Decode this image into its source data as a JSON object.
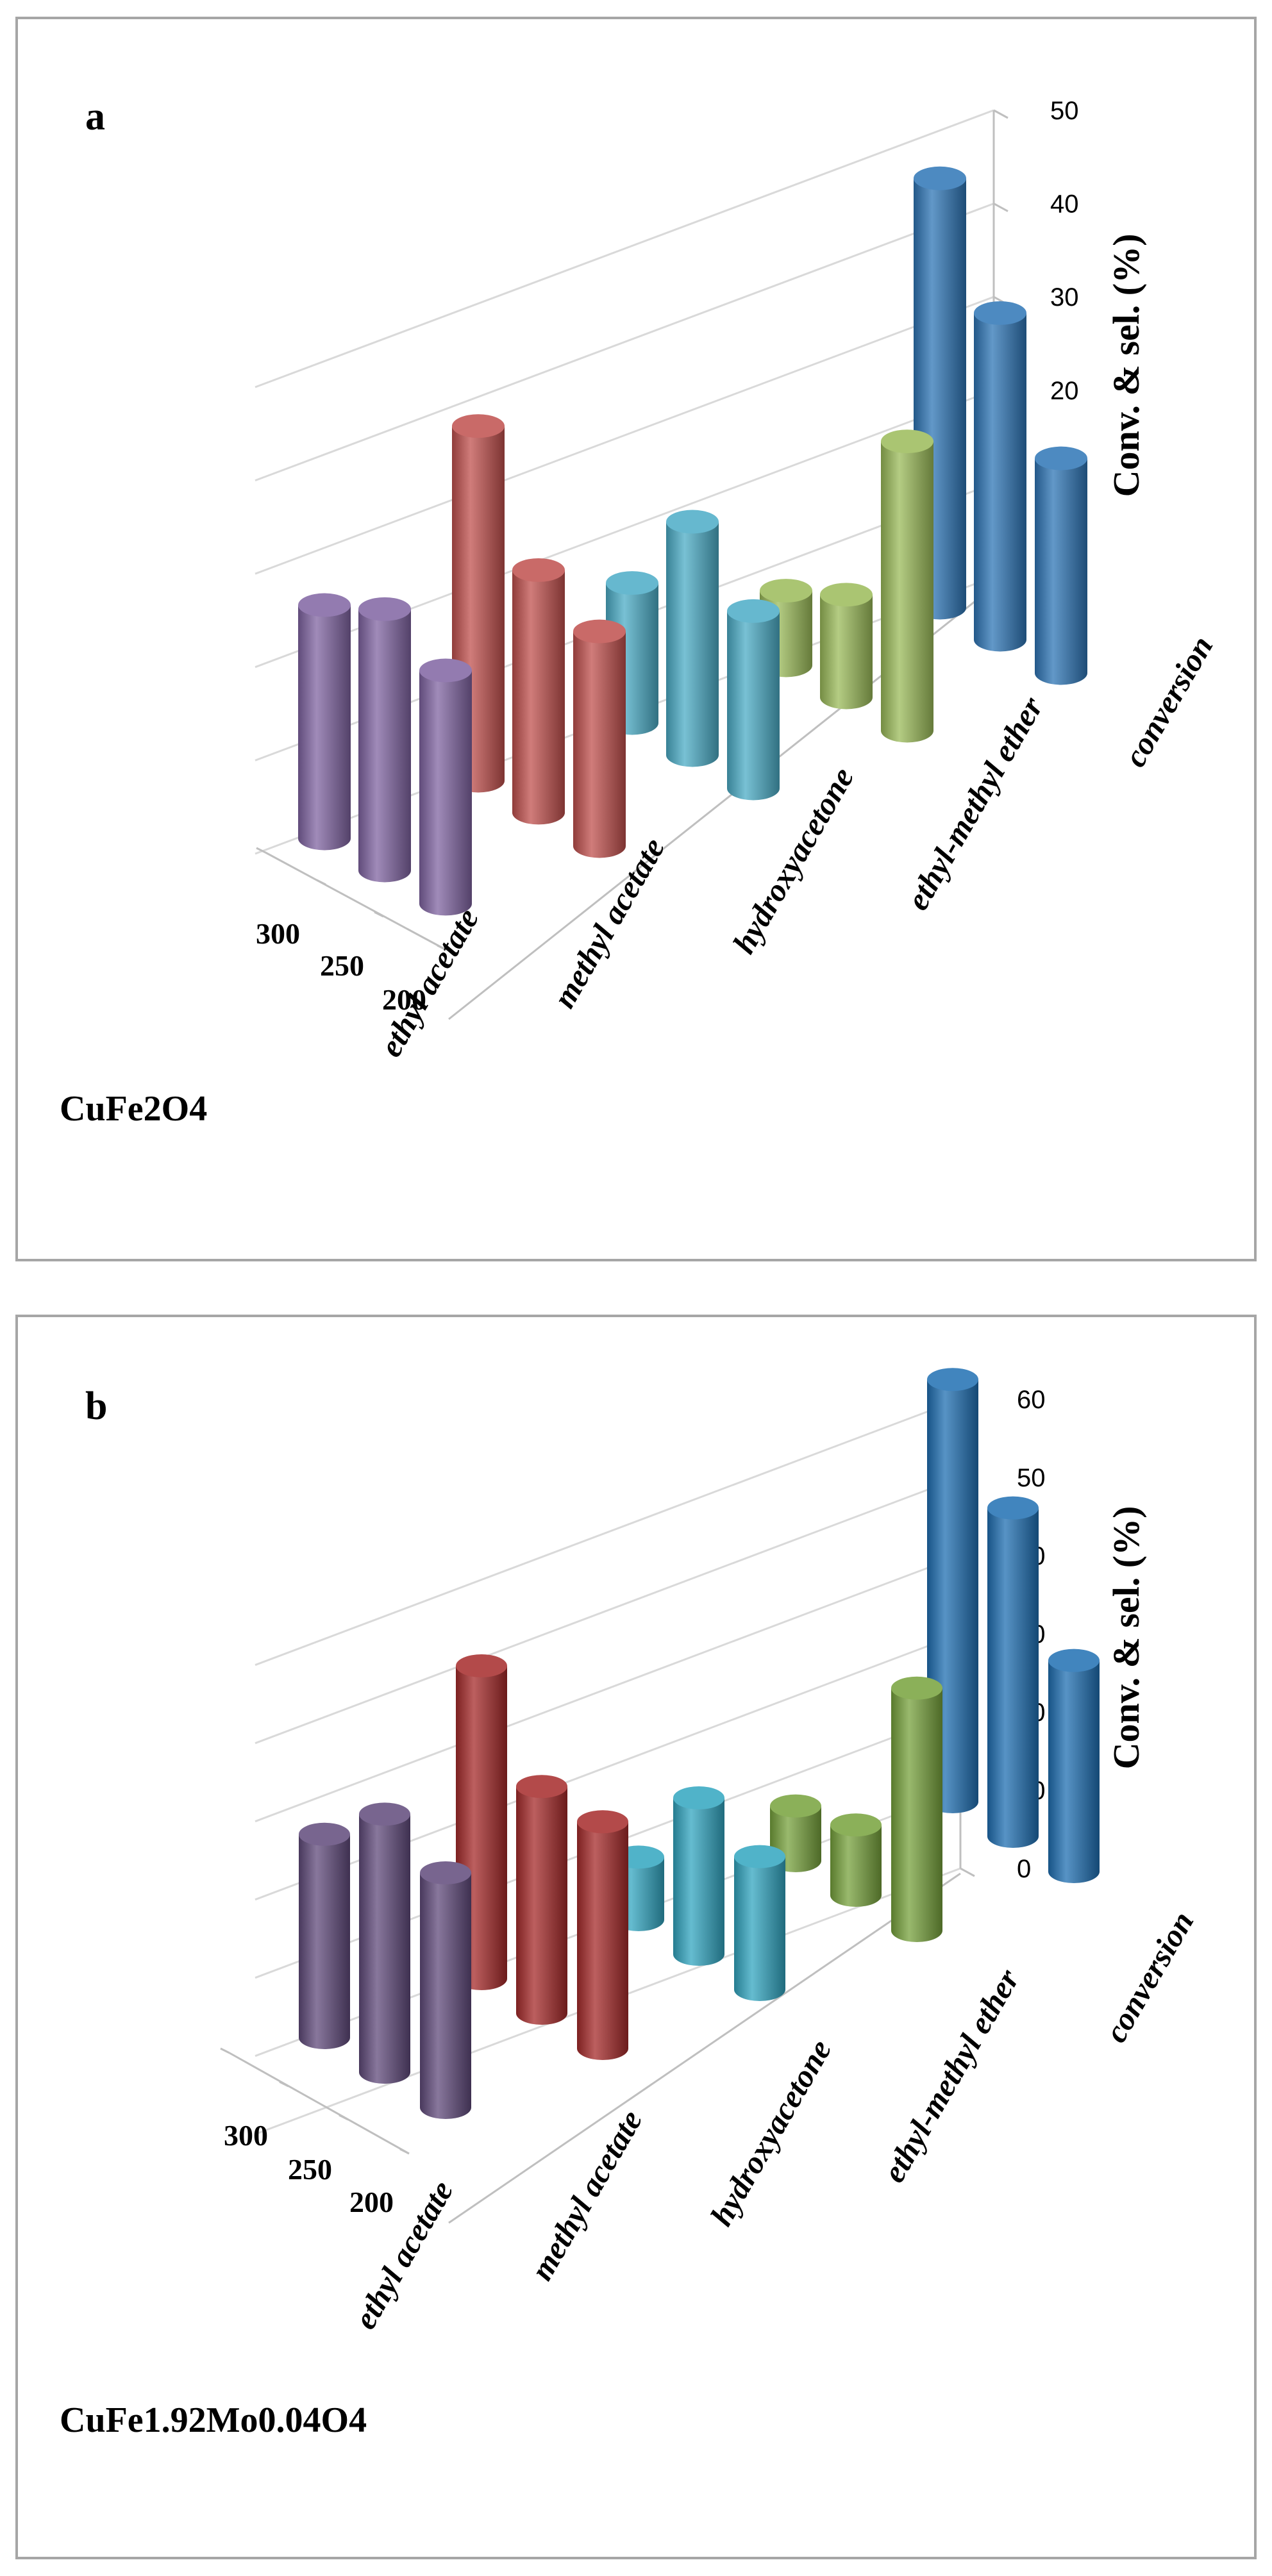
{
  "chart_data": [
    {
      "type": "bar",
      "variant": "3d-cylinder",
      "panel": "a",
      "sample": "CuFe2O4",
      "ylabel": "Conv. & sel. (%)",
      "ylim": [
        0,
        50
      ],
      "yticks": [
        0,
        10,
        20,
        30,
        40,
        50
      ],
      "categories": [
        "ethyl acetate",
        "methyl acetate",
        "hydroxyacetone",
        "ethyl-methyl ether",
        "conversion"
      ],
      "depth_categories": [
        "300",
        "250",
        "200"
      ],
      "grid": true,
      "colors": {
        "ethyl acetate": "#8064a2",
        "methyl acetate": "#c0504d",
        "hydroxyacetone": "#4bacc6",
        "ethyl-methyl ether": "#9bbb59",
        "conversion": "#2e75b6"
      },
      "series": [
        {
          "name": "300",
          "values": [
            25,
            38,
            15,
            8,
            46
          ]
        },
        {
          "name": "250",
          "values": [
            28,
            26,
            25,
            11,
            35
          ]
        },
        {
          "name": "200",
          "values": [
            25,
            23,
            19,
            31,
            23
          ]
        }
      ]
    },
    {
      "type": "bar",
      "variant": "3d-cylinder",
      "panel": "b",
      "sample": "CuFe1.92Mo0.04O4",
      "ylabel": "Conv. & sel. (%)",
      "ylim": [
        0,
        60
      ],
      "yticks": [
        0,
        10,
        20,
        30,
        40,
        50,
        60
      ],
      "categories": [
        "ethyl acetate",
        "methyl acetate",
        "hydroxyacetone",
        "ethyl-methyl ether",
        "conversion"
      ],
      "depth_categories": [
        "300",
        "250",
        "200"
      ],
      "grid": true,
      "colors": {
        "ethyl acetate": "#604a7b",
        "methyl acetate": "#a52a2a",
        "hydroxyacetone": "#31a5c0",
        "ethyl-methyl ether": "#77a23c",
        "conversion": "#1f6fb2"
      },
      "series": [
        {
          "name": "300",
          "values": [
            26,
            40,
            8,
            7,
            54
          ]
        },
        {
          "name": "250",
          "values": [
            33,
            29,
            20,
            9,
            42
          ]
        },
        {
          "name": "200",
          "values": [
            30,
            29,
            17,
            31,
            27
          ]
        }
      ]
    }
  ]
}
